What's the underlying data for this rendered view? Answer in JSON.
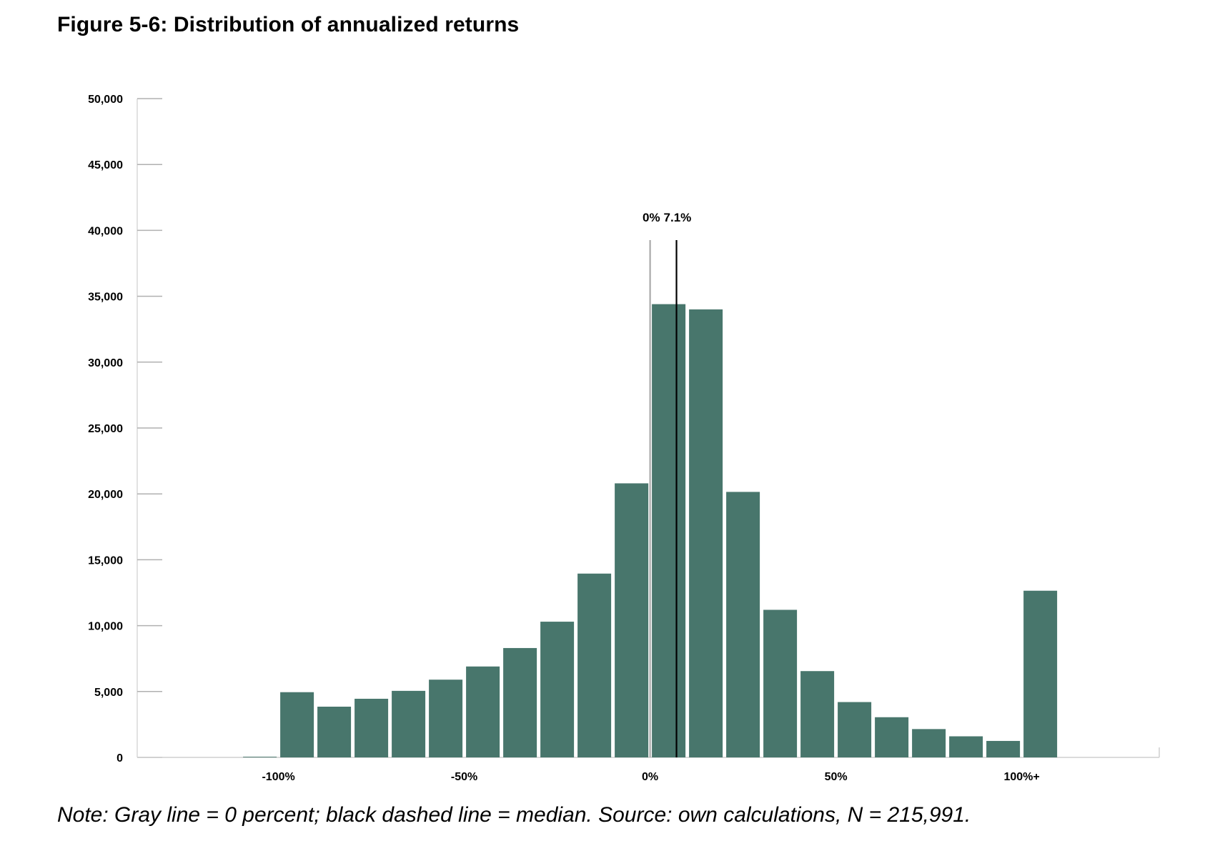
{
  "figure": {
    "title": "Figure 5-6: Distribution of annualized returns",
    "note": "Note: Gray line = 0 percent; black dashed line = median. Source: own calculations, N = 215,991."
  },
  "chart_data": {
    "type": "bar",
    "title": "Figure 5-6: Distribution of annualized returns",
    "xlabel": "",
    "ylabel": "",
    "ylim": [
      0,
      50000
    ],
    "yticks": [
      0,
      5000,
      10000,
      15000,
      20000,
      25000,
      30000,
      35000,
      40000,
      45000,
      50000
    ],
    "ytick_labels": [
      "0",
      "5,000",
      "10,000",
      "15,000",
      "20,000",
      "25,000",
      "30,000",
      "35,000",
      "40,000",
      "45,000",
      "50,000"
    ],
    "xlim": [
      -138,
      137
    ],
    "xticks": [
      {
        "x": -100,
        "label": "-100%"
      },
      {
        "x": -50,
        "label": "-50%"
      },
      {
        "x": 0,
        "label": "0%"
      },
      {
        "x": 50,
        "label": "50%"
      },
      {
        "x": 100,
        "label": "100%+"
      }
    ],
    "bins": [
      {
        "start": -110,
        "end": -100,
        "value": 50
      },
      {
        "start": -100,
        "end": -90,
        "value": 4950
      },
      {
        "start": -90,
        "end": -80,
        "value": 3850
      },
      {
        "start": -80,
        "end": -70,
        "value": 4450
      },
      {
        "start": -70,
        "end": -60,
        "value": 5050
      },
      {
        "start": -60,
        "end": -50,
        "value": 5900
      },
      {
        "start": -50,
        "end": -40,
        "value": 6900
      },
      {
        "start": -40,
        "end": -30,
        "value": 8300
      },
      {
        "start": -30,
        "end": -20,
        "value": 10300
      },
      {
        "start": -20,
        "end": -10,
        "value": 13950
      },
      {
        "start": -10,
        "end": 0,
        "value": 20800
      },
      {
        "start": 0,
        "end": 10,
        "value": 34400
      },
      {
        "start": 10,
        "end": 20,
        "value": 34000
      },
      {
        "start": 20,
        "end": 30,
        "value": 20150
      },
      {
        "start": 30,
        "end": 40,
        "value": 11200
      },
      {
        "start": 40,
        "end": 50,
        "value": 6550
      },
      {
        "start": 50,
        "end": 60,
        "value": 4200
      },
      {
        "start": 60,
        "end": 70,
        "value": 3050
      },
      {
        "start": 70,
        "end": 80,
        "value": 2150
      },
      {
        "start": 80,
        "end": 90,
        "value": 1600
      },
      {
        "start": 90,
        "end": 100,
        "value": 1250
      },
      {
        "start": 100,
        "end": 110,
        "value": 12650
      }
    ],
    "reference_lines": [
      {
        "name": "zero",
        "x": 0,
        "label": "0%",
        "color": "#aaaaaa"
      },
      {
        "name": "median",
        "x": 7.1,
        "label": "7.1%",
        "color": "#000000"
      }
    ],
    "bar_color": "#48766c",
    "grid": false,
    "legend": "none"
  }
}
